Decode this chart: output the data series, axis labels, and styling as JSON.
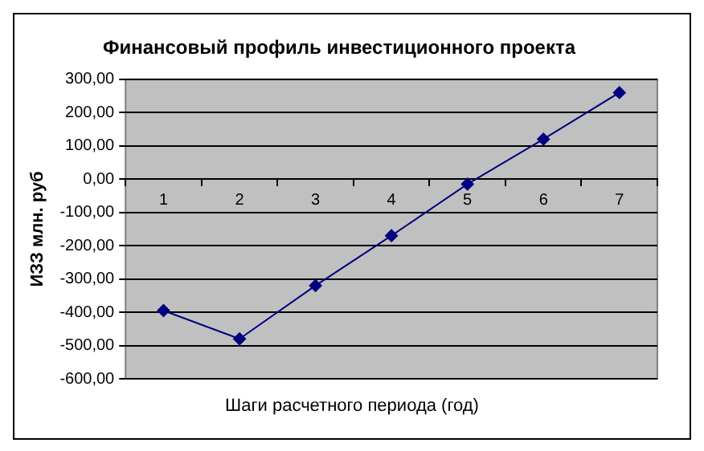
{
  "chart_data": {
    "type": "line",
    "title": "Финансовый профиль инвестиционного проекта",
    "xlabel": "Шаги расчетного периода (год)",
    "ylabel": "ИЗЗ млн. руб",
    "categories": [
      "1",
      "2",
      "3",
      "4",
      "5",
      "6",
      "7"
    ],
    "series": [
      {
        "color": "#000080",
        "values": [
          -395,
          -480,
          -320,
          -170,
          -15,
          120,
          260
        ]
      }
    ],
    "ylim": [
      -600,
      300
    ],
    "yticks": [
      {
        "value": -600,
        "label": "-600,00"
      },
      {
        "value": -500,
        "label": "-500,00"
      },
      {
        "value": -400,
        "label": "-400,00"
      },
      {
        "value": -300,
        "label": "-300,00"
      },
      {
        "value": -200,
        "label": "-200,00"
      },
      {
        "value": -100,
        "label": "-100,00"
      },
      {
        "value": 0,
        "label": "0,00"
      },
      {
        "value": 100,
        "label": "100,00"
      },
      {
        "value": 200,
        "label": "200,00"
      },
      {
        "value": 300,
        "label": "300,00"
      }
    ],
    "grid": "y",
    "legend": false,
    "marker": "diamond",
    "line_style": "solid"
  }
}
